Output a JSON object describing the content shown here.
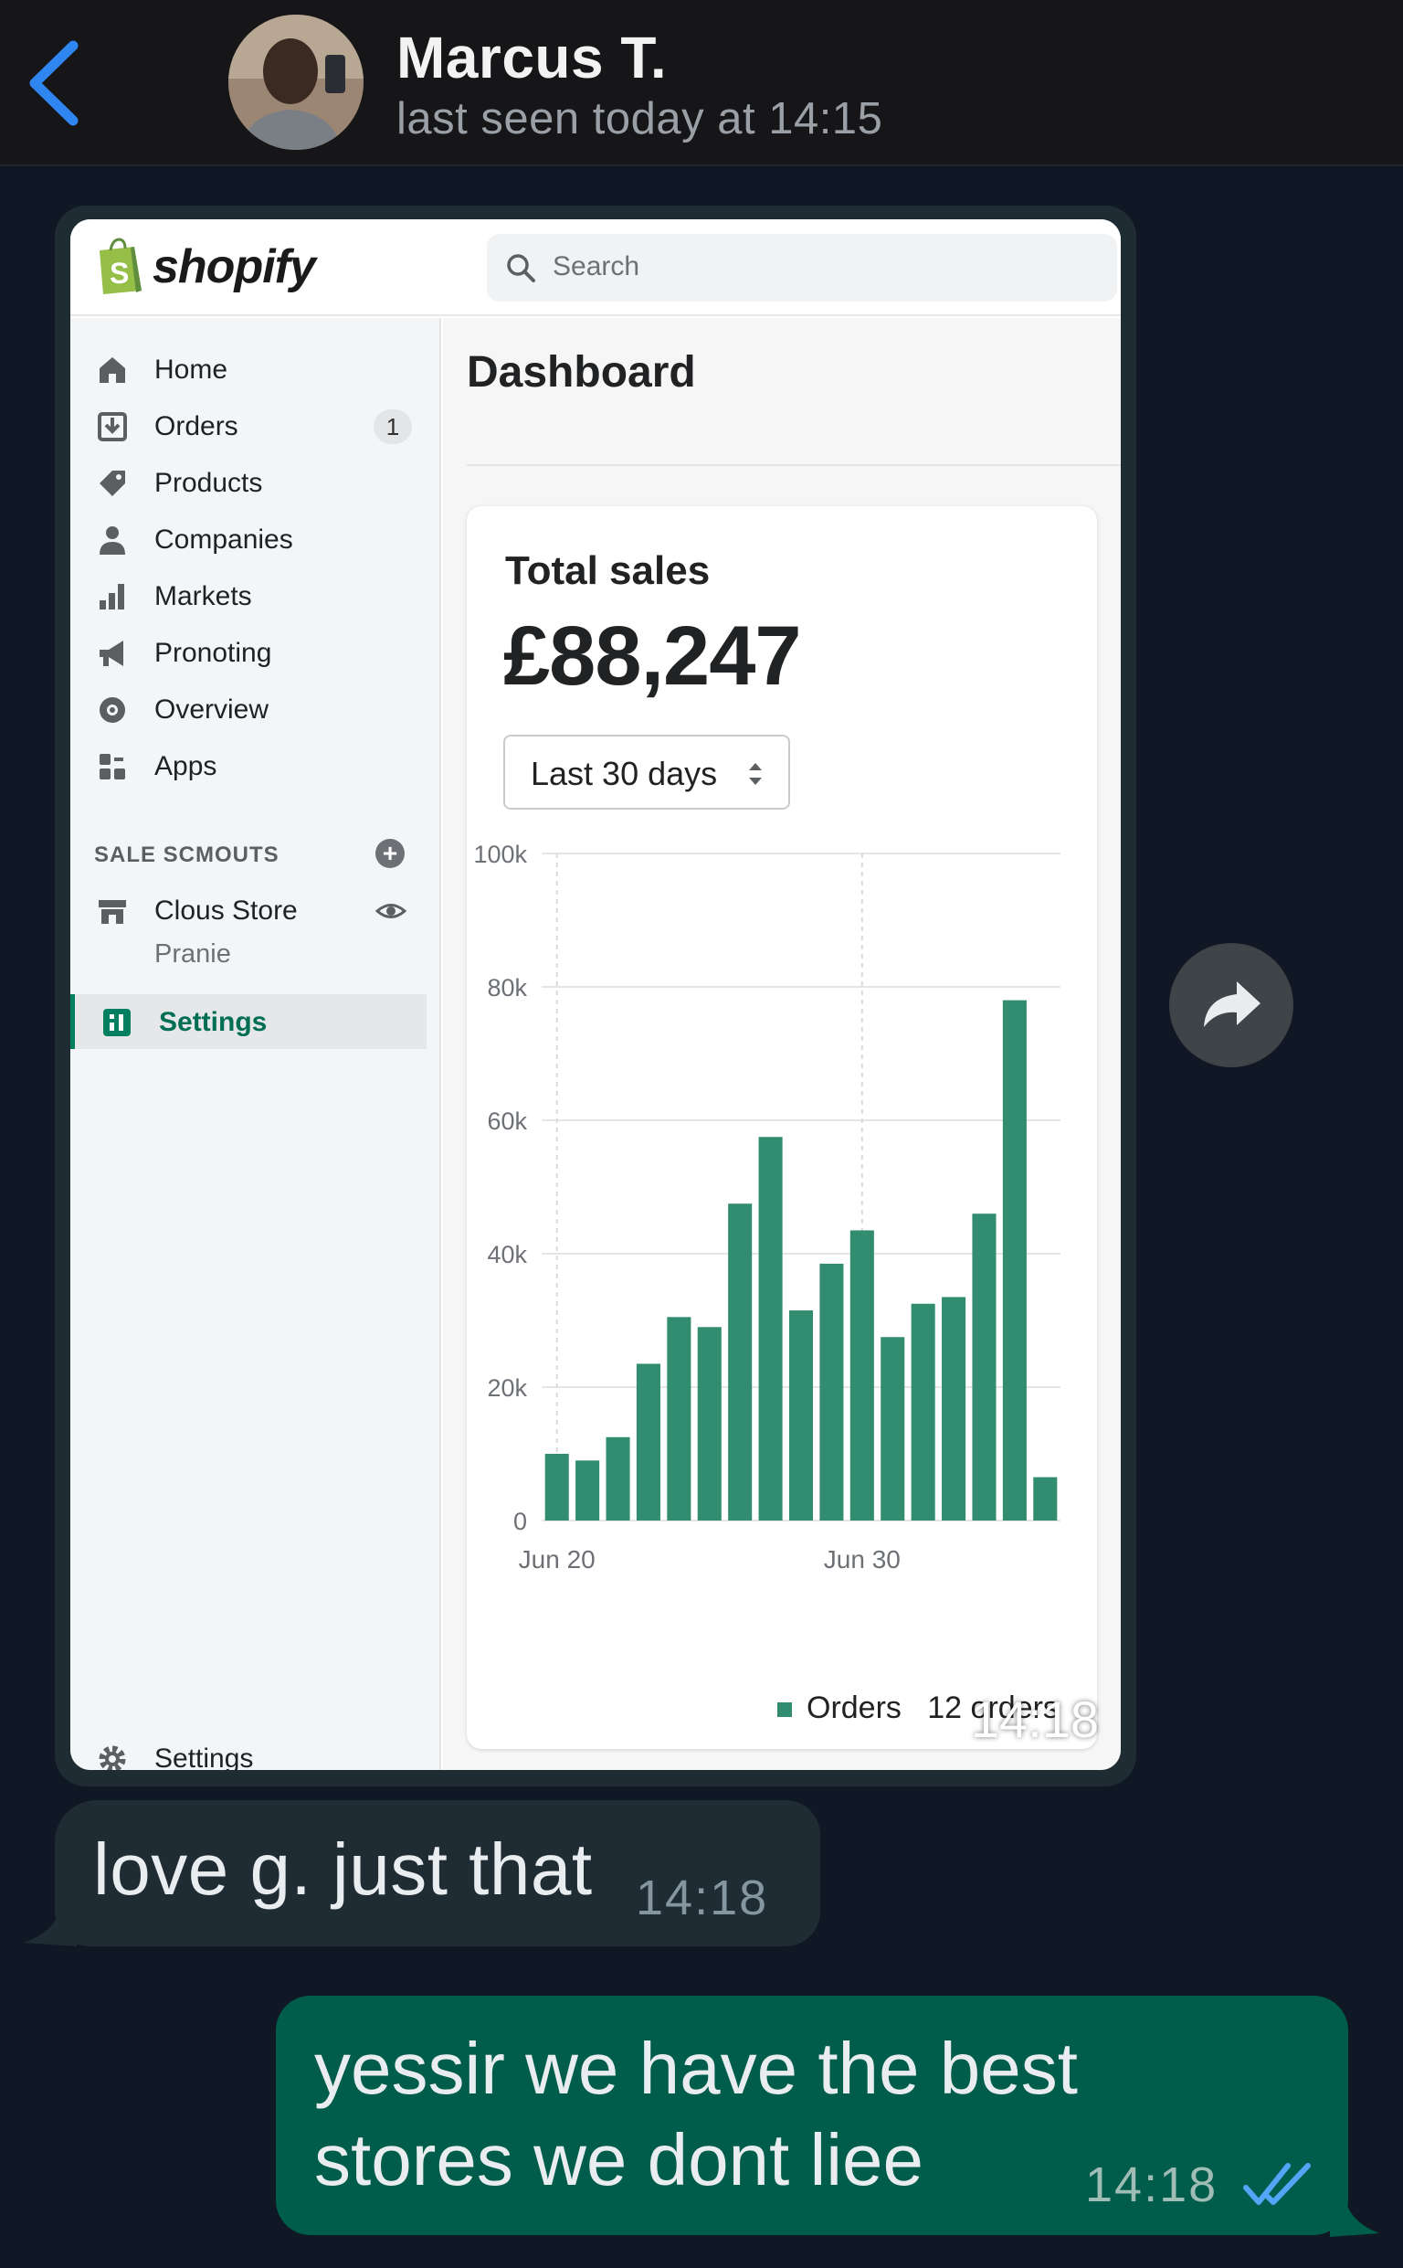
{
  "header": {
    "back_icon": "chevron-left-icon",
    "contact_name": "Marcus T.",
    "status": "last seen today at 14:15"
  },
  "image_message": {
    "timestamp": "14:18",
    "shopify": {
      "brand": "shopify",
      "search_placeholder": "Search",
      "nav": [
        {
          "label": "Home",
          "icon": "home-icon"
        },
        {
          "label": "Orders",
          "icon": "orders-icon",
          "badge": "1"
        },
        {
          "label": "Products",
          "icon": "tag-icon"
        },
        {
          "label": "Companies",
          "icon": "person-icon"
        },
        {
          "label": "Markets",
          "icon": "bar-chart-icon"
        },
        {
          "label": "Pronoting",
          "icon": "megaphone-icon"
        },
        {
          "label": "Overview",
          "icon": "gear-badge-icon"
        },
        {
          "label": "Apps",
          "icon": "apps-icon"
        }
      ],
      "sales_channels": {
        "title": "SALE SCMOUTS",
        "store": "Clous Store",
        "sub_item": "Pranie",
        "active_item": "Settings"
      },
      "footer_settings": "Settings",
      "page_title": "Dashboard",
      "card": {
        "title": "Total sales",
        "value": "£88,247",
        "range": "Last 30 days",
        "legend_series": "Orders",
        "legend_count": "12 orders"
      }
    }
  },
  "chart_data": {
    "type": "bar",
    "x_tick_labels": [
      "Jun 20",
      "Jun 30"
    ],
    "x_tick_indices": [
      0,
      10
    ],
    "y_ticks": [
      "0",
      "20k",
      "40k",
      "60k",
      "80k",
      "100k"
    ],
    "ylim": [
      0,
      100000
    ],
    "series": [
      {
        "name": "Orders",
        "values": [
          10000,
          9000,
          12500,
          23500,
          30500,
          29000,
          47500,
          57500,
          31500,
          38500,
          43500,
          27500,
          32500,
          33500,
          46000,
          78000,
          6500
        ]
      }
    ],
    "color": "#318c70",
    "grid": true
  },
  "incoming_message": {
    "text": "love g. just that",
    "time": "14:18"
  },
  "outgoing_message": {
    "text": "yessir we have the best stores we dont liee",
    "time": "14:18",
    "status_icon": "double-check-icon"
  },
  "colors": {
    "chat_bg": "#0f1824",
    "incoming_bubble": "#1f2c34",
    "outgoing_bubble": "#005c4b",
    "accent_blue": "#2f86f0",
    "shopify_green": "#008060"
  }
}
